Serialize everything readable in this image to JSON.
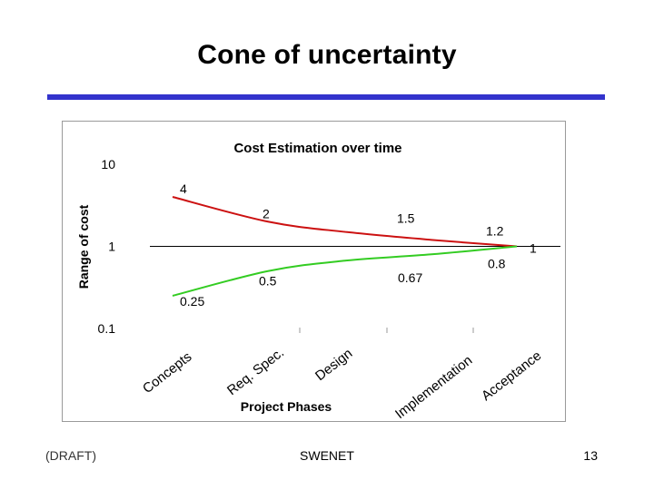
{
  "slide": {
    "title": "Cone of uncertainty",
    "rule_color": "#3333cc",
    "footer_left": "(DRAFT)",
    "footer_center": "SWENET",
    "footer_right": "13"
  },
  "chart_data": {
    "type": "line",
    "title": "Cost Estimation over time",
    "xlabel": "Project Phases",
    "ylabel": "Range of cost",
    "yscale": "log",
    "ylim": [
      0.1,
      10
    ],
    "yticks": [
      "10",
      "1",
      "0.1"
    ],
    "categories": [
      "Concepts",
      "Req. Spec.",
      "Design",
      "Implementation",
      "Acceptance"
    ],
    "series": [
      {
        "name": "upper",
        "color": "#cc1111",
        "values": [
          4,
          2,
          1.5,
          1.2,
          1
        ],
        "labels": [
          "4",
          "2",
          "1.5",
          "1.2",
          "1"
        ]
      },
      {
        "name": "lower",
        "color": "#33cc22",
        "values": [
          0.25,
          0.5,
          0.67,
          0.8,
          1
        ],
        "labels": [
          "0.25",
          "0.5",
          "0.67",
          "0.8",
          ""
        ]
      }
    ]
  }
}
